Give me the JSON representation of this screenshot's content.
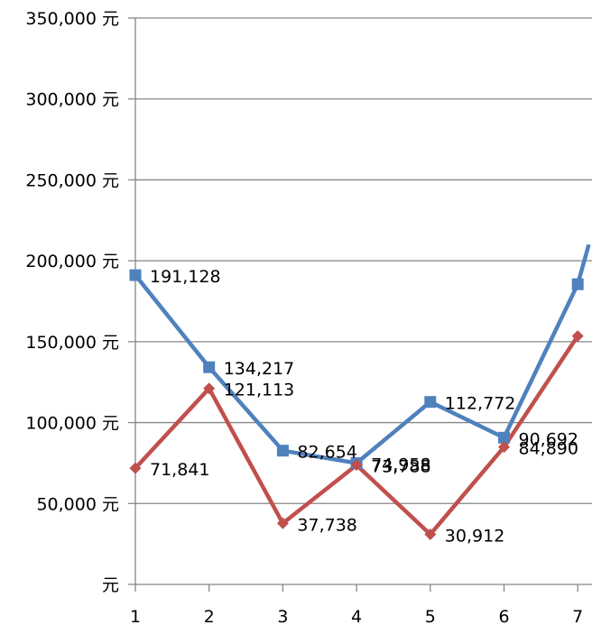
{
  "chart_data": {
    "type": "line",
    "title": "",
    "xlabel": "",
    "ylabel": "",
    "x": [
      1,
      2,
      3,
      4,
      5,
      6,
      7
    ],
    "x_tick_labels": [
      "1",
      "2",
      "3",
      "4",
      "5",
      "6",
      "7"
    ],
    "ylim": [
      0,
      350000
    ],
    "y_ticks": [
      0,
      50000,
      100000,
      150000,
      200000,
      250000,
      300000,
      350000
    ],
    "y_tick_labels": [
      "元",
      "50,000 元",
      "100,000 元",
      "150,000 元",
      "200,000 元",
      "250,000 元",
      "300,000 元",
      "350,000 元"
    ],
    "grid": true,
    "series": [
      {
        "color": "#4F81BD",
        "marker": "square",
        "values": [
          191128,
          134217,
          82654,
          74958,
          112772,
          90692,
          185500
        ],
        "data_labels": [
          "191,128",
          "134,217",
          "82,654",
          "74,958",
          "112,772",
          "90,692",
          ""
        ]
      },
      {
        "color": "#C0504D",
        "marker": "diamond",
        "values": [
          71841,
          121113,
          37738,
          73788,
          30912,
          84890,
          153500
        ],
        "data_labels": [
          "71,841",
          "121,113",
          "37,738",
          "73,788",
          "30,912",
          "84,890",
          ""
        ]
      }
    ],
    "overflow_point_x": 7.15,
    "overflow_point_value": 210000
  }
}
